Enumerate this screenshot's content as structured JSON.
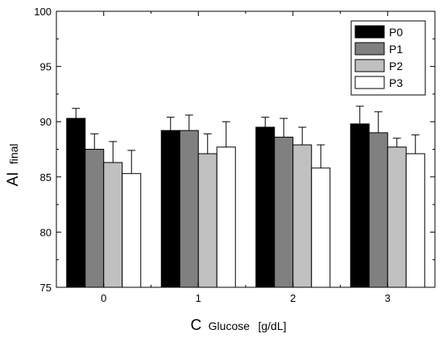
{
  "chart_data": {
    "type": "bar",
    "categories": [
      "0",
      "1",
      "2",
      "3"
    ],
    "series": [
      {
        "name": "P0",
        "color": "#000000",
        "values": [
          90.3,
          89.2,
          89.5,
          89.8
        ],
        "errors": [
          0.9,
          1.2,
          0.9,
          1.6
        ]
      },
      {
        "name": "P1",
        "color": "#808080",
        "values": [
          87.5,
          89.2,
          88.6,
          89.0
        ],
        "errors": [
          1.4,
          1.4,
          1.7,
          1.9
        ]
      },
      {
        "name": "P2",
        "color": "#c0c0c0",
        "values": [
          86.3,
          87.1,
          87.9,
          87.7
        ],
        "errors": [
          1.9,
          1.8,
          1.6,
          0.8
        ]
      },
      {
        "name": "P3",
        "color": "#ffffff",
        "values": [
          85.3,
          87.7,
          85.8,
          87.1
        ],
        "errors": [
          2.1,
          2.3,
          2.1,
          1.7
        ]
      }
    ],
    "ylim": [
      75,
      100
    ],
    "yticks": [
      75,
      80,
      85,
      90,
      95,
      100
    ],
    "ylabel": {
      "main": "AI",
      "sub": "final"
    },
    "xlabel": {
      "main": "C",
      "sub": "Glucose",
      "unit": "[g/dL]"
    },
    "legend_position": "top-right"
  }
}
